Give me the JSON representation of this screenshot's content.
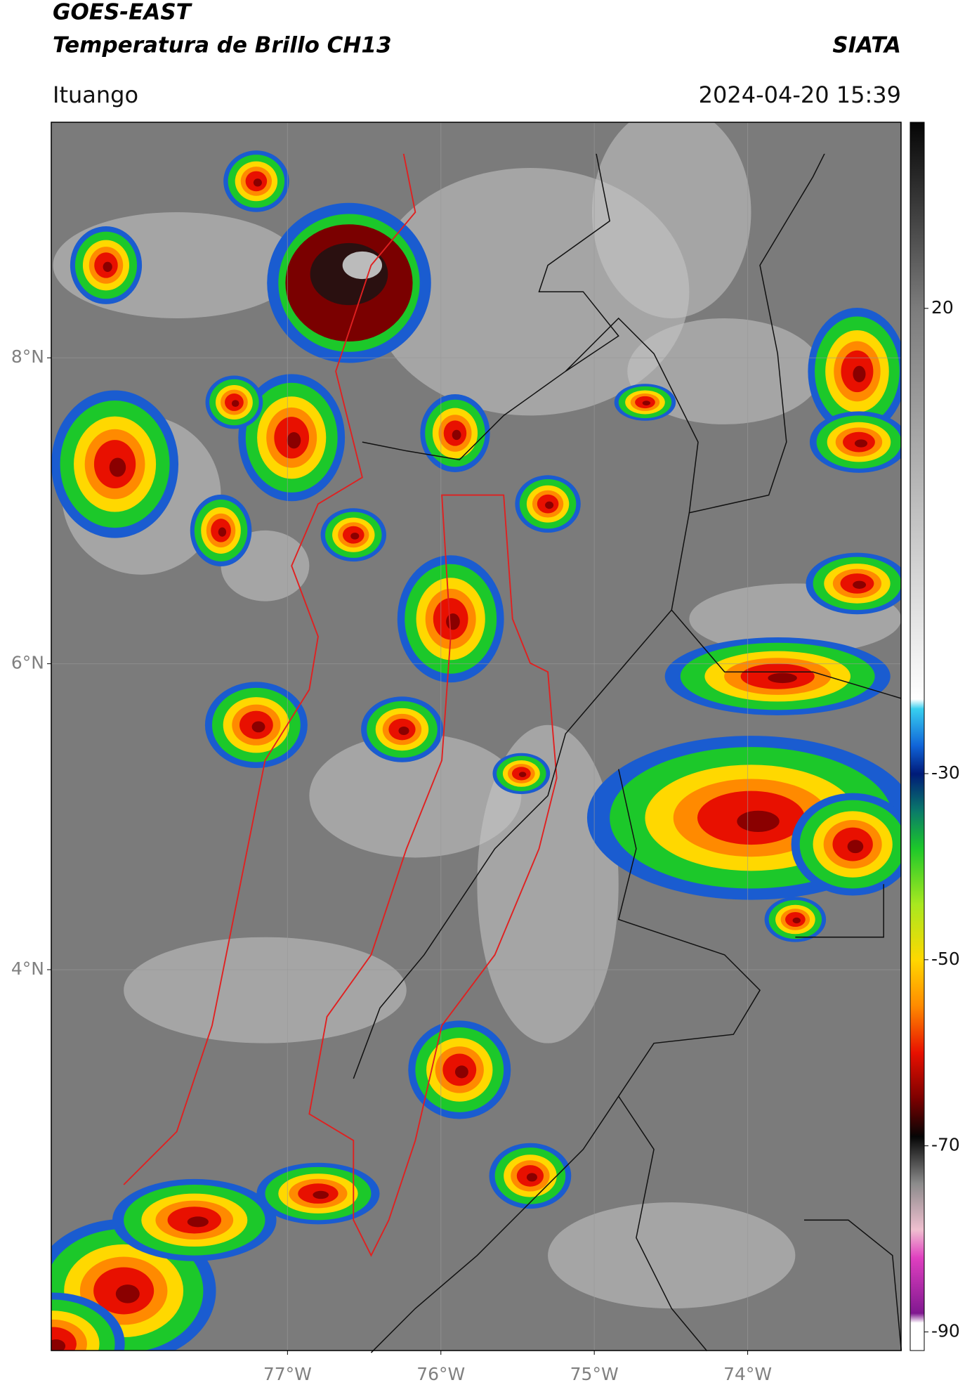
{
  "header": {
    "title": "GOES-EAST",
    "subtitle": "Temperatura de Brillo CH13",
    "brand": "SIATA",
    "location": "Ituango",
    "datetime": "2024-04-20 15:39"
  },
  "map": {
    "type": "map",
    "xlim": [
      -78.54,
      -73.0
    ],
    "ylim": [
      1.51,
      9.54
    ],
    "xticks": [
      {
        "value": -77,
        "label": "77°W"
      },
      {
        "value": -76,
        "label": "76°W"
      },
      {
        "value": -75,
        "label": "75°W"
      },
      {
        "value": -74,
        "label": "74°W"
      }
    ],
    "yticks": [
      {
        "value": 8,
        "label": "8°N"
      },
      {
        "value": 6,
        "label": "6°N"
      },
      {
        "value": 4,
        "label": "4°N"
      }
    ],
    "grid": true,
    "background": "#7b7b7b"
  },
  "colorbar": {
    "ylim": [
      -92,
      40
    ],
    "yticks": [
      20,
      -30,
      -50,
      -70,
      -90
    ],
    "colors": [
      {
        "value": 40,
        "color": "#050505"
      },
      {
        "value": 20,
        "color": "#7c7c7c"
      },
      {
        "value": -22,
        "color": "#ffffff"
      },
      {
        "value": -23,
        "color": "#38d0f0"
      },
      {
        "value": -27,
        "color": "#1064d8"
      },
      {
        "value": -30,
        "color": "#001a78"
      },
      {
        "value": -34,
        "color": "#0a7a6a"
      },
      {
        "value": -38,
        "color": "#1cc82a"
      },
      {
        "value": -44,
        "color": "#a8e820"
      },
      {
        "value": -50,
        "color": "#ffd800"
      },
      {
        "value": -55,
        "color": "#ff8a00"
      },
      {
        "value": -60,
        "color": "#e81000"
      },
      {
        "value": -65,
        "color": "#7a0000"
      },
      {
        "value": -69,
        "color": "#050505"
      },
      {
        "value": -74,
        "color": "#8a8a8a"
      },
      {
        "value": -79,
        "color": "#f0c0d0"
      },
      {
        "value": -82,
        "color": "#e040c0"
      },
      {
        "value": -88,
        "color": "#801890"
      },
      {
        "value": -89,
        "color": "#ffffff"
      },
      {
        "value": -92,
        "color": "#ffffff"
      }
    ]
  }
}
